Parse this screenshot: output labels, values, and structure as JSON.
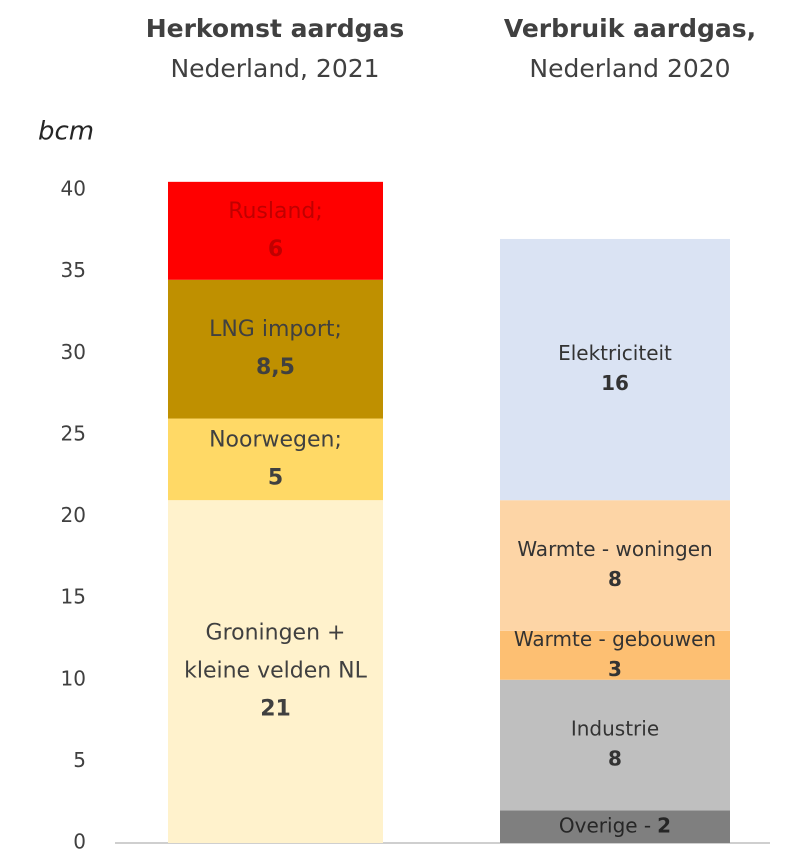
{
  "chart_data": {
    "type": "stacked_columns",
    "y_label": "bcm",
    "ylim": [
      0,
      40
    ],
    "yticks": [
      0,
      5,
      10,
      15,
      20,
      25,
      30,
      35,
      40
    ],
    "columns": [
      {
        "title": "Herkomst aardgas",
        "subtitle": "Nederland, 2021",
        "names": [
          [
            "Groningen +",
            "kleine velden NL"
          ],
          "Noorwegen;",
          "LNG import;",
          "Rusland;"
        ],
        "values": [
          21,
          5,
          8.5,
          6
        ],
        "value_labels": [
          "21",
          "5",
          "8,5",
          "6"
        ],
        "colors": [
          "#fff2cc",
          "#ffd966",
          "#bf9000",
          "#ff0000"
        ],
        "text_colors": [
          "#404040",
          "#404040",
          "#404040",
          "#c00000"
        ]
      },
      {
        "title": "Verbruik aardgas,",
        "subtitle": "Nederland 2020",
        "names": [
          "Overige -",
          "Industrie",
          "Warmte - gebouwen",
          "Warmte - woningen",
          "Elektriciteit"
        ],
        "values": [
          2,
          8,
          3,
          8,
          16
        ],
        "value_labels": [
          "2",
          "8",
          "3",
          "8",
          "16"
        ],
        "colors": [
          "#7f7f7f",
          "#bfbfbf",
          "#fdbf72",
          "#fdd5a6",
          "#dae3f3"
        ],
        "text_colors": [
          "#262626",
          "#333333",
          "#333333",
          "#333333",
          "#333333"
        ]
      }
    ]
  }
}
